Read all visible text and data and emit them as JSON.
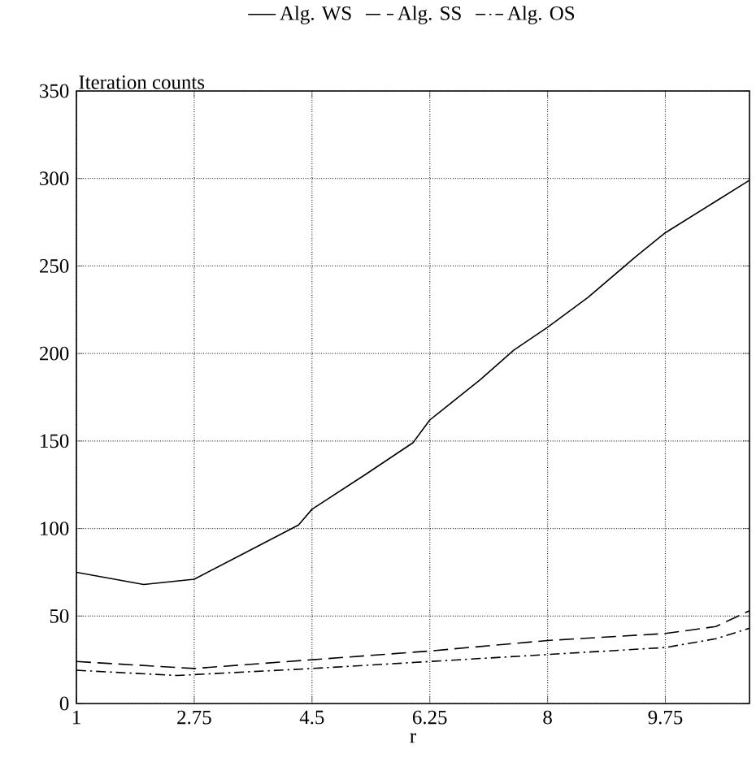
{
  "chart_data": {
    "type": "line",
    "xlabel": "r",
    "ylabel": "Iteration counts",
    "xlim": [
      1,
      11
    ],
    "ylim": [
      0,
      350
    ],
    "xticks": [
      1,
      2.75,
      4.5,
      6.25,
      8,
      9.75
    ],
    "yticks": [
      0,
      50,
      100,
      150,
      200,
      250,
      300,
      350
    ],
    "grid": true,
    "legend": "top",
    "series": [
      {
        "name": "Alg. WS",
        "color": "#000000",
        "line_style": "solid",
        "x": [
          1,
          2,
          2.75,
          3.5,
          4.3,
          4.5,
          5.3,
          6,
          6.25,
          7,
          7.5,
          8,
          8.6,
          9.3,
          9.75,
          10.5,
          11
        ],
        "values": [
          75,
          68,
          71,
          86,
          102,
          111,
          131,
          149,
          162,
          185,
          202,
          215,
          232,
          255,
          269,
          287,
          299
        ]
      },
      {
        "name": "Alg. SS",
        "color": "#000000",
        "line_style": "dashed",
        "x": [
          1,
          2.75,
          4.5,
          6.25,
          8,
          9.75,
          10.5,
          11
        ],
        "values": [
          24,
          20,
          25,
          30,
          36,
          40,
          44,
          53
        ]
      },
      {
        "name": "Alg. OS",
        "color": "#000000",
        "line_style": "dashdot",
        "x": [
          1,
          2.5,
          4.5,
          6.25,
          8,
          9.75,
          10.5,
          11
        ],
        "values": [
          19,
          16,
          20,
          24,
          28,
          32,
          37,
          43
        ]
      }
    ]
  }
}
